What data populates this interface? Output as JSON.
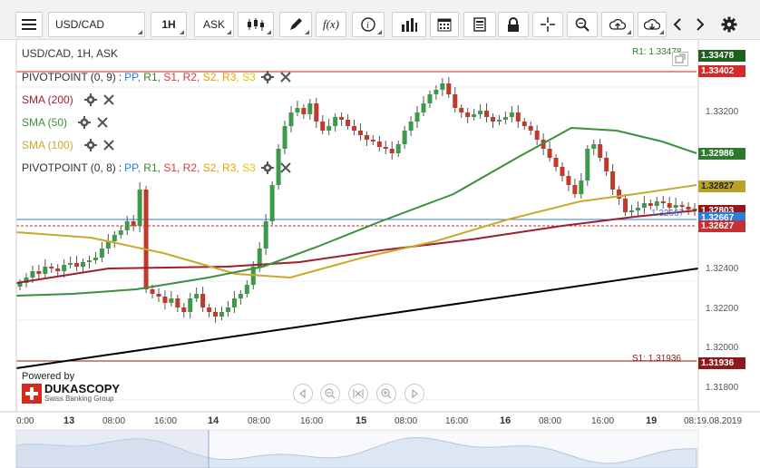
{
  "toolbar": {
    "symbol": "USD/CAD",
    "period": "1H",
    "side": "ASK",
    "icons": [
      "menu-icon",
      "candlestick-icon",
      "draw-pen-icon",
      "function-icon",
      "info-icon",
      "bar-chart-icon",
      "calendar-icon",
      "document-icon",
      "lock-icon",
      "crosshair-icon",
      "zoom-icon",
      "upload-icon",
      "download-icon",
      "chevron-left-icon",
      "chevron-right-icon",
      "gear-icon"
    ],
    "fx_label": "f(x)"
  },
  "chart_header": "USD/CAD, 1H, ASK",
  "indicators": [
    {
      "name": "PIVOTPOINT (0, 9)",
      "params": [
        "PP",
        "R1",
        "S1",
        "R2",
        "S2",
        "R3",
        "S3"
      ],
      "param_colors": [
        "#2a7ddb",
        "#2d8a2d",
        "#d23c3c",
        "#d23c3c",
        "#e8a200",
        "#e8a200",
        "#e8c300"
      ]
    },
    {
      "name": "SMA (200)",
      "color": "#a01e2e"
    },
    {
      "name": "SMA (50)",
      "color": "#3c8f3c"
    },
    {
      "name": "SMA (100)",
      "color": "#c9a92a"
    },
    {
      "name": "PIVOTPOINT (0, 8)",
      "params": [
        "PP",
        "R1",
        "S1",
        "R2",
        "S2",
        "R3",
        "S3"
      ],
      "param_colors": [
        "#2a7ddb",
        "#2d8a2d",
        "#d23c3c",
        "#d23c3c",
        "#e8a200",
        "#e8a200",
        "#e8c300"
      ]
    }
  ],
  "pivot_labels": {
    "r1": "R1: 1.33478",
    "s1": "S1: 1.31936",
    "pp": "1.32667"
  },
  "price_tags": [
    {
      "value": "1.33478",
      "color": "#1f5f1f"
    },
    {
      "value": "1.33402",
      "color": "#d42a2a"
    },
    {
      "value": "1.32986",
      "color": "#2d7a2d"
    },
    {
      "value": "1.32827",
      "color": "#b9a12a"
    },
    {
      "value": "1.32803",
      "color": "#8c1a1a"
    },
    {
      "value": "1.32667",
      "color": "#2a7ddb"
    },
    {
      "value": "1.32627",
      "color": "#c63030"
    },
    {
      "value": "1.31936",
      "color": "#8c1a1a"
    }
  ],
  "y_axis": [
    "1.33200",
    "1.32400",
    "1.32200",
    "1.32000",
    "1.31800"
  ],
  "x_axis": {
    "labels": [
      "0:00",
      "13",
      "08:00",
      "16:00",
      "14",
      "08:00",
      "16:00",
      "15",
      "08:00",
      "16:00",
      "16",
      "08:00",
      "16:00",
      "19",
      "08:0"
    ],
    "date": "19.08.2019"
  },
  "powered_by": {
    "line1": "Powered by",
    "brand": "DUKASCOPY",
    "sub": "Swiss Banking Group"
  },
  "colors": {
    "up": "#3c9a4a",
    "down": "#c0392b",
    "sma200": "#a01e2e",
    "sma50": "#3c8f3c",
    "sma100": "#c9a92a",
    "trend": "#000000"
  }
}
